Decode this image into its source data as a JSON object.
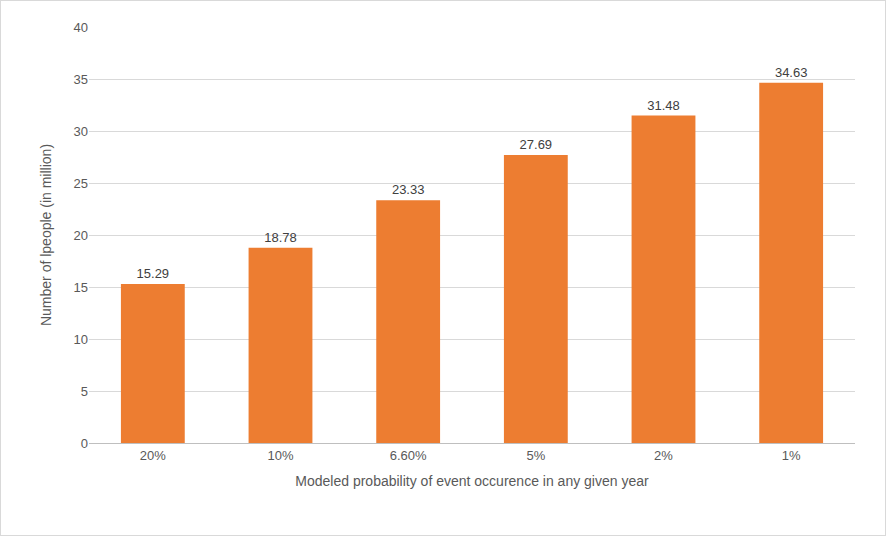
{
  "chart_data": {
    "type": "bar",
    "x_label": "Modeled probability of event occurence in any given year",
    "y_label": "Number of lpeople (in million)",
    "categories": [
      "20%",
      "10%",
      "6.60%",
      "5%",
      "2%",
      "1%"
    ],
    "values": [
      15.29,
      18.78,
      23.33,
      27.69,
      31.48,
      34.63
    ],
    "color": "#ed7d31",
    "ylim": [
      0,
      40
    ],
    "yticks": [
      0,
      5,
      10,
      15,
      20,
      25,
      30,
      35,
      40
    ],
    "grid": true,
    "data_labels": true
  }
}
